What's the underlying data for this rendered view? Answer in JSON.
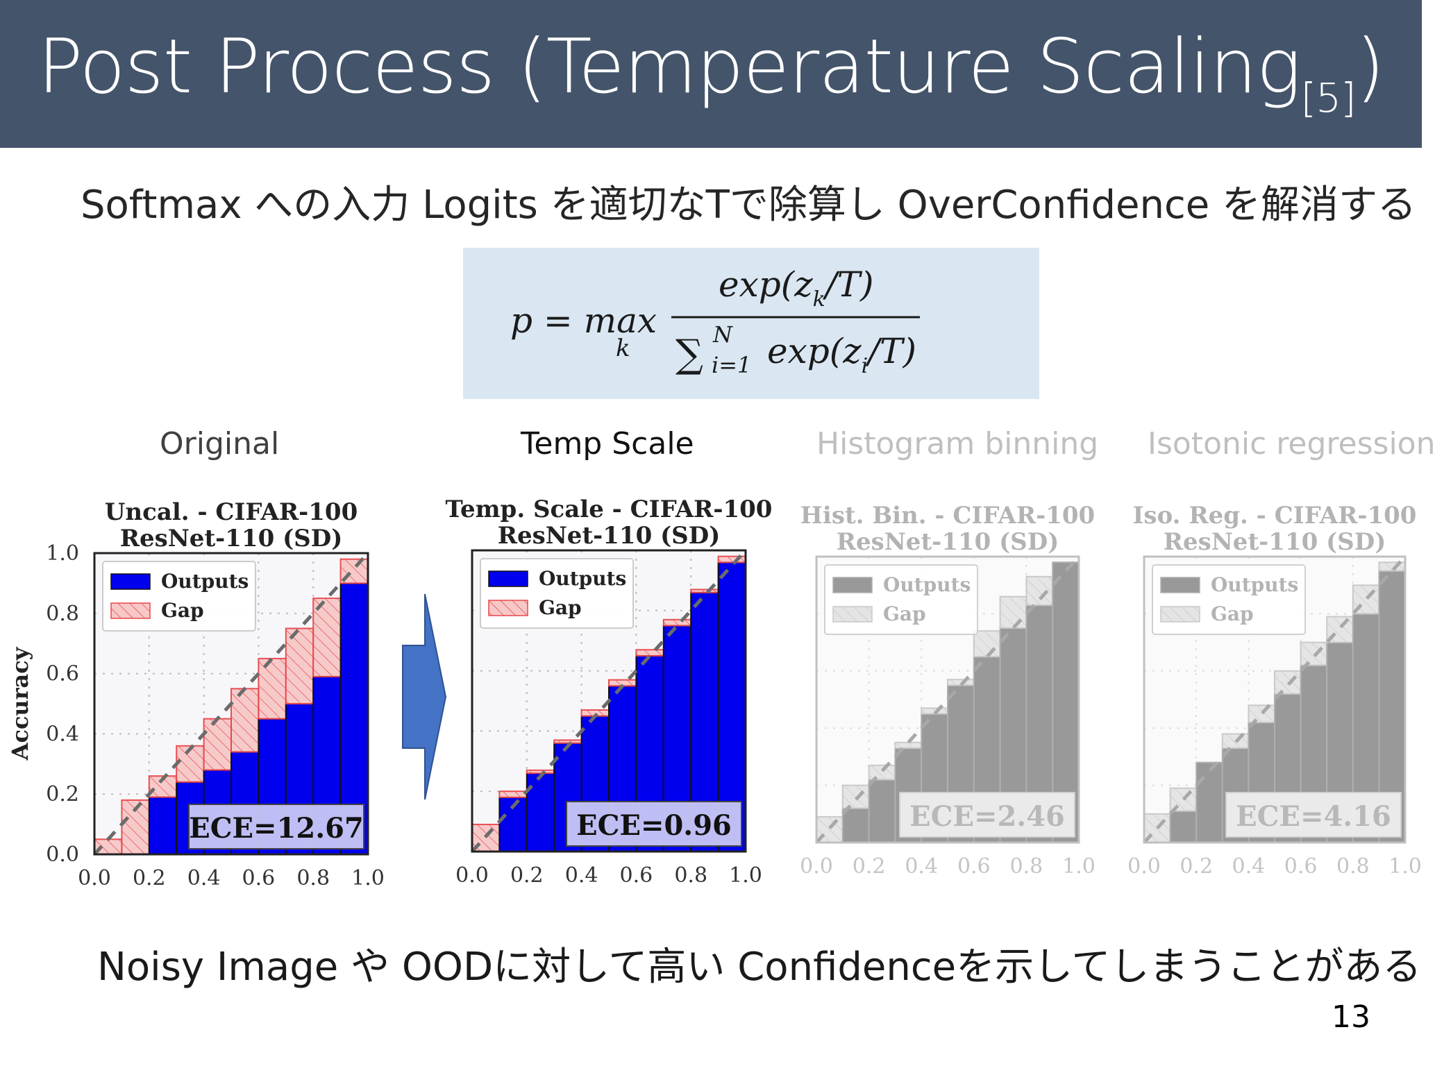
{
  "slide": {
    "title": "Post Process (Temperature Scaling",
    "title_ref": "[5]",
    "title_close": ")",
    "subtitle": "Softmax への入力 Logits を適切なTで除算し OverConfidence を解消する",
    "formula": {
      "lhs": "p = max",
      "argmax_sub": "k",
      "numerator": "exp(z",
      "num_sub": "k",
      "num_tail": "/T)",
      "sum_symbol": "∑",
      "sum_sup": "N",
      "sum_sub": "i=1",
      "denominator": "exp(z",
      "den_sub": "i",
      "den_tail": "/T)"
    },
    "methods": [
      "Original",
      "Temp Scale",
      "Histogram binning",
      "Isotonic regression"
    ],
    "footer": "Noisy Image や OODに対して高い Confidenceを示してしまうことがある",
    "page_number": "13",
    "colors": {
      "header": "#44546a",
      "formula_bg": "#dae7f3",
      "outputs": "#0000ee",
      "gap_fill": "#f8c8c8",
      "gap_edge": "#e8474b",
      "arrow": "#4472c4",
      "faded": "#999999"
    }
  },
  "chart_data": [
    {
      "type": "bar",
      "title": "Uncal. - CIFAR-100",
      "subtitle": "ResNet-110 (SD)",
      "ylabel": "Accuracy",
      "xlim": [
        0,
        1
      ],
      "ylim": [
        0,
        1
      ],
      "xticks": [
        "0.0",
        "0.2",
        "0.4",
        "0.6",
        "0.8",
        "1.0"
      ],
      "yticks": [
        "0.0",
        "0.2",
        "0.4",
        "0.6",
        "0.8",
        "1.0"
      ],
      "bins": [
        0.0,
        0.1,
        0.2,
        0.3,
        0.4,
        0.5,
        0.6,
        0.7,
        0.8,
        0.9
      ],
      "outputs": [
        0.0,
        0.0,
        0.19,
        0.24,
        0.28,
        0.34,
        0.45,
        0.5,
        0.59,
        0.9
      ],
      "gap_top": [
        0.05,
        0.18,
        0.26,
        0.36,
        0.45,
        0.55,
        0.65,
        0.75,
        0.85,
        0.98
      ],
      "legend": [
        "Outputs",
        "Gap"
      ],
      "legend_position": "top-left",
      "annotation": "ECE=12.67",
      "faded": false
    },
    {
      "type": "bar",
      "title": "Temp. Scale - CIFAR-100",
      "subtitle": "ResNet-110 (SD)",
      "ylabel": "",
      "xlim": [
        0,
        1
      ],
      "ylim": [
        0,
        1
      ],
      "xticks": [
        "0.0",
        "0.2",
        "0.4",
        "0.6",
        "0.8",
        "1.0"
      ],
      "yticks": [],
      "bins": [
        0.0,
        0.1,
        0.2,
        0.3,
        0.4,
        0.5,
        0.6,
        0.7,
        0.8,
        0.9
      ],
      "outputs": [
        0.0,
        0.18,
        0.26,
        0.36,
        0.45,
        0.55,
        0.65,
        0.75,
        0.86,
        0.96
      ],
      "gap_top": [
        0.09,
        0.2,
        0.27,
        0.37,
        0.47,
        0.57,
        0.67,
        0.77,
        0.87,
        0.98
      ],
      "legend": [
        "Outputs",
        "Gap"
      ],
      "legend_position": "top-left",
      "annotation": "ECE=0.96",
      "faded": false
    },
    {
      "type": "bar",
      "title": "Hist. Bin. - CIFAR-100",
      "subtitle": "ResNet-110 (SD)",
      "ylabel": "",
      "xlim": [
        0,
        1
      ],
      "ylim": [
        0,
        1
      ],
      "xticks": [
        "0.0",
        "0.2",
        "0.4",
        "0.6",
        "0.8",
        "1.0"
      ],
      "yticks": [],
      "bins": [
        0.0,
        0.1,
        0.2,
        0.3,
        0.4,
        0.5,
        0.6,
        0.7,
        0.8,
        0.9
      ],
      "outputs": [
        0.0,
        0.12,
        0.22,
        0.33,
        0.45,
        0.55,
        0.65,
        0.75,
        0.83,
        0.98
      ],
      "gap_top": [
        0.09,
        0.2,
        0.27,
        0.35,
        0.47,
        0.57,
        0.74,
        0.86,
        0.93,
        0.98
      ],
      "legend": [
        "Outputs",
        "Gap"
      ],
      "legend_position": "top-left",
      "annotation": "ECE=2.46",
      "faded": true
    },
    {
      "type": "bar",
      "title": "Iso. Reg. - CIFAR-100",
      "subtitle": "ResNet-110 (SD)",
      "ylabel": "",
      "xlim": [
        0,
        1
      ],
      "ylim": [
        0,
        1
      ],
      "xticks": [
        "0.0",
        "0.2",
        "0.4",
        "0.6",
        "0.8",
        "1.0"
      ],
      "yticks": [],
      "bins": [
        0.0,
        0.1,
        0.2,
        0.3,
        0.4,
        0.5,
        0.6,
        0.7,
        0.8,
        0.9
      ],
      "outputs": [
        0.0,
        0.11,
        0.28,
        0.33,
        0.42,
        0.52,
        0.62,
        0.7,
        0.8,
        0.95
      ],
      "gap_top": [
        0.1,
        0.19,
        0.28,
        0.38,
        0.48,
        0.6,
        0.7,
        0.79,
        0.9,
        0.98
      ],
      "legend": [
        "Outputs",
        "Gap"
      ],
      "legend_position": "top-left",
      "annotation": "ECE=4.16",
      "faded": true
    }
  ]
}
